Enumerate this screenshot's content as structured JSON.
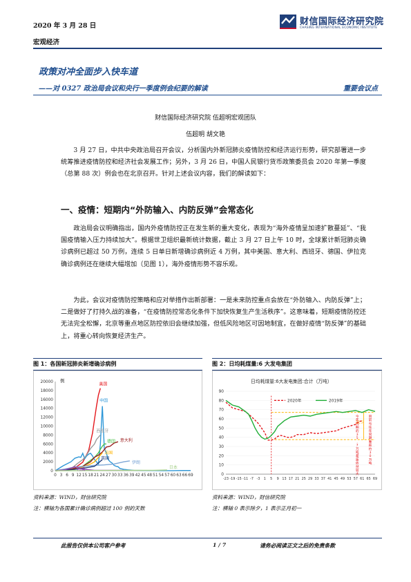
{
  "header": {
    "date": "2020 年 3 月 28 日",
    "category": "宏观经济",
    "logo_cn": "财信国际经济研究院",
    "logo_en": "CHASING INTERNATIONAL ECONOMIC INSTITUTE",
    "brand_color": "#1f3f7a"
  },
  "title": "政策对冲全面步入快车道",
  "subtitle": "——对 0327 政治局会议和央行一季度例会纪要的解读",
  "tag": "重要会议点",
  "institute": "财信国际经济研究院 伍超明宏观团队",
  "authors": "伍超明 胡文艳",
  "para1": "3 月 27 日，中共中央政治局召开会议，分析国内外新冠肺炎疫情防控和经济运行形势，研究部署进一步统筹推进疫情防控和经济社会发展工作；另外，3 月 26 日，中国人民银行货币政策委员会 2020 年第一季度（总第 88 次）例会也在北京召开。针对上述会议内容，我们的解读如下：",
  "section1": "一、疫情：短期内“外防输入、内防反弹”会常态化",
  "para2": "政治局会议明确指出，国内外疫情防控正在发生新的重大变化，表现为“海外疫情呈加速扩散蔓延”、“我国疫情输入压力持续加大”。根据世卫组织最新统计数据，截止 3 月 27 日上午 10 时，全球累计新冠肺炎确诊病例已超过 50 万例，连续 5 日单日新增确诊病例近 4 万例，其中美国、意大利、西班牙、德国、伊拉克确诊病例还在继续大幅增加（见图 1），海外疫情形势不容乐观。",
  "para3": "为此，会议对疫情防控策略和应对举措作出新部署：一是未来防控重点会放在“外防输入、内防反弹”上；二是做好了打持久战的准备，“在疫情防控常态化条件下加快恢复生产生活秩序”。这意味着，短期疫情防控还无法完全松懈，北京等重点地区防控依旧会继续加强，但低风险地区可因地制宜，在做好疫情“防反弹”的基础上，将重心转向恢复经济生产。",
  "fig1": {
    "caption": "图 1：各国新冠肺炎新增确诊病例",
    "source": "资料来源：WIND，财信研究院",
    "note": "注：横轴为各国累计确诊病例超过 100 例的天数"
  },
  "fig2": {
    "caption": "图 2：日均耗煤量:6 大发电集团",
    "source": "资料来源：WIND，财信研究院",
    "note": "注：横轴 0 表示除夕，1 表示正月初一"
  },
  "chart_data": [
    {
      "type": "line",
      "title": "",
      "ylabel": "例",
      "ylim": [
        0,
        20000
      ],
      "yticks": [
        "0",
        "2000",
        "4000",
        "6000",
        "8000",
        "10000",
        "12000",
        "14000",
        "16000",
        "18000",
        "20000"
      ],
      "xlim": [
        0,
        69
      ],
      "xticks": [
        "0",
        "3",
        "6",
        "9",
        "12",
        "15",
        "18",
        "21",
        "24",
        "27",
        "30",
        "33",
        "36",
        "39",
        "42",
        "45",
        "48",
        "51",
        "54",
        "57",
        "60",
        "63",
        "66",
        "69"
      ],
      "series": [
        {
          "name": "美国",
          "color": "#e4161b",
          "x": [
            0,
            6,
            10,
            14,
            17,
            19,
            20,
            21,
            22,
            23
          ],
          "y": [
            0,
            120,
            600,
            1900,
            4500,
            8500,
            11500,
            14500,
            17000,
            18500
          ]
        },
        {
          "name": "中国",
          "color": "#2e97d8",
          "x": [
            0,
            4,
            8,
            10,
            12,
            13,
            14,
            15,
            16,
            17,
            18,
            19,
            20,
            21,
            22,
            23,
            24,
            25,
            26,
            27,
            28,
            29,
            30,
            31,
            32,
            33,
            34,
            35,
            37,
            40,
            45,
            50,
            55,
            60,
            65,
            69
          ],
          "y": [
            0,
            1100,
            2000,
            2800,
            3100,
            3000,
            3900,
            2700,
            3300,
            3700,
            3900,
            3300,
            2500,
            2000,
            1500,
            6000,
            14500,
            5000,
            4000,
            2500,
            2000,
            1700,
            1200,
            1000,
            900,
            500,
            400,
            300,
            200,
            100,
            50,
            30,
            20,
            20,
            40,
            50
          ]
        },
        {
          "name": "德国",
          "color": "#4fc24f",
          "x": [
            0,
            10,
            14,
            17,
            20,
            22,
            23,
            24,
            25,
            26
          ],
          "y": [
            0,
            500,
            1000,
            2000,
            3000,
            4000,
            4800,
            5500,
            6000,
            6000
          ]
        },
        {
          "name": "西班牙",
          "color": "#9b9b9b",
          "x": [
            0,
            8,
            11,
            14,
            16,
            18,
            20,
            21,
            22,
            23
          ],
          "y": [
            0,
            400,
            1500,
            2500,
            3500,
            5000,
            6000,
            7000,
            7500,
            8000
          ]
        },
        {
          "name": "意大利",
          "color": "#9b1c1c",
          "x": [
            0,
            6,
            10,
            14,
            18,
            20,
            22,
            24,
            26,
            28,
            30,
            32
          ],
          "y": [
            0,
            200,
            500,
            1000,
            2000,
            3000,
            3500,
            4200,
            5300,
            5500,
            6200,
            6500
          ]
        },
        {
          "name": "法国",
          "color": "#ffb400",
          "x": [
            0,
            10,
            14,
            18,
            20,
            22,
            23,
            24
          ],
          "y": [
            0,
            300,
            800,
            1500,
            2000,
            3000,
            3500,
            4000
          ]
        },
        {
          "name": "伊朗",
          "color": "#7da6d6",
          "x": [
            0,
            5,
            10,
            15,
            20,
            25,
            30,
            35,
            38
          ],
          "y": [
            0,
            400,
            800,
            1000,
            1200,
            1300,
            1500,
            2000,
            2200
          ]
        },
        {
          "name": "英国",
          "color": "#1f3a7a",
          "x": [
            0,
            10,
            15,
            20,
            24
          ],
          "y": [
            0,
            300,
            600,
            1000,
            2500
          ]
        },
        {
          "name": "韩国",
          "color": "#8e44ad",
          "x": [
            0,
            5,
            8,
            10,
            12,
            15,
            20,
            25,
            30,
            35
          ],
          "y": [
            0,
            200,
            600,
            900,
            500,
            300,
            100,
            100,
            100,
            100
          ]
        },
        {
          "name": "日本",
          "color": "#a8d18d",
          "x": [
            0,
            10,
            20,
            30,
            40,
            50,
            57
          ],
          "y": [
            0,
            20,
            40,
            60,
            80,
            100,
            150
          ]
        }
      ]
    },
    {
      "type": "line",
      "title": "日均耗煤量:6大发电集团:合计（万吨）",
      "ylim": [
        0,
        90
      ],
      "yticks": [
        "0",
        "10",
        "20",
        "30",
        "40",
        "50",
        "60",
        "70",
        "80",
        "90"
      ],
      "xlim": [
        -23,
        69
      ],
      "xticks": [
        "-23",
        "-19",
        "-15",
        "-11",
        "-7",
        "-3",
        "1",
        "5",
        "9",
        "13",
        "17",
        "21",
        "25",
        "29",
        "33",
        "37",
        "41",
        "45",
        "49",
        "53",
        "57",
        "61",
        "65",
        "69"
      ],
      "series": [
        {
          "name": "2020年",
          "color": "#e4161b",
          "dashed": true,
          "x": [
            -23,
            -19,
            -15,
            -11,
            -7,
            -3,
            1,
            3,
            5,
            7,
            9,
            11,
            13,
            15,
            17,
            19,
            21,
            25,
            29,
            33,
            37,
            41,
            45,
            49,
            53,
            57,
            59,
            61
          ],
          "y": [
            78,
            72,
            70,
            68,
            62,
            55,
            45,
            37,
            37,
            38,
            41,
            42,
            41,
            40,
            40,
            41,
            43,
            43,
            45,
            44,
            45,
            46,
            47,
            50,
            52,
            54,
            57,
            58
          ]
        },
        {
          "name": "2019年",
          "color": "#1fad36",
          "x": [
            -23,
            -19,
            -15,
            -11,
            -9,
            -7,
            -5,
            -3,
            -1,
            1,
            3,
            5,
            7,
            9,
            13,
            17,
            21,
            25,
            29,
            33,
            37,
            41,
            45,
            49,
            53,
            57,
            61,
            65,
            69
          ],
          "y": [
            80,
            75,
            73,
            68,
            65,
            58,
            50,
            44,
            40,
            38,
            39,
            42,
            46,
            52,
            58,
            62,
            63,
            64,
            63,
            65,
            66,
            67,
            68,
            67,
            68,
            69,
            67,
            70,
            68
          ]
        }
      ],
      "annotations": [
        {
          "text": "21.5",
          "color": "#ffb400"
        },
        {
          "text": "今年同期的35.7万吨差距依然较大",
          "color": "#e4161b"
        },
        {
          "text": "目前与往年同期差距约30万吨",
          "color": "#e4161b"
        }
      ],
      "reference_lines": [
        {
          "y": 67,
          "color": "#ffb400",
          "dashed": true
        },
        {
          "y": 37.5,
          "color": "#ffb400",
          "dashed": true
        }
      ]
    }
  ],
  "footer": {
    "left": "此报告仅供本公司客户参考",
    "page": "1 / 7",
    "right": "请务必阅读正文之后的免责条款"
  }
}
